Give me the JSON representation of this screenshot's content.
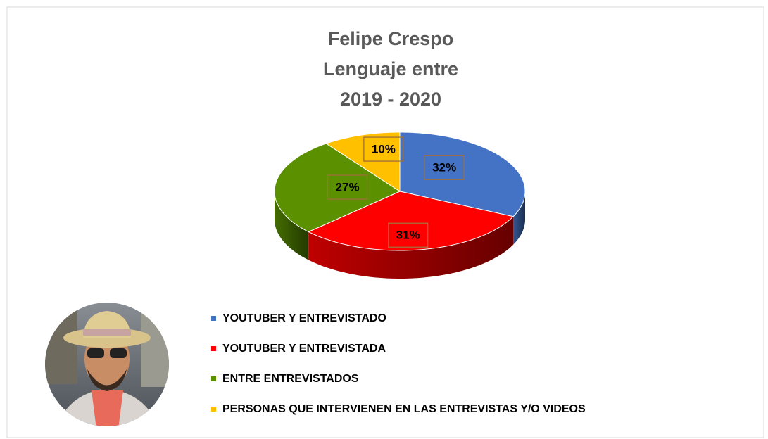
{
  "chart_data": {
    "type": "pie3d",
    "title": [
      "Felipe Crespo",
      "Lenguaje entre",
      "2019 - 2020"
    ],
    "categories": [
      "YOUTUBER Y ENTREVISTADO",
      "YOUTUBER Y ENTREVISTADA",
      "ENTRE ENTREVISTADOS",
      "PERSONAS QUE INTERVIENEN EN LAS ENTREVISTAS Y/O VIDEOS"
    ],
    "values": [
      32,
      31,
      27,
      10
    ],
    "value_labels": [
      "32%",
      "31%",
      "27%",
      "10%"
    ],
    "colors": [
      "#4472c4",
      "#ff0000",
      "#5b9100",
      "#ffc000"
    ],
    "legend": "bottom"
  }
}
